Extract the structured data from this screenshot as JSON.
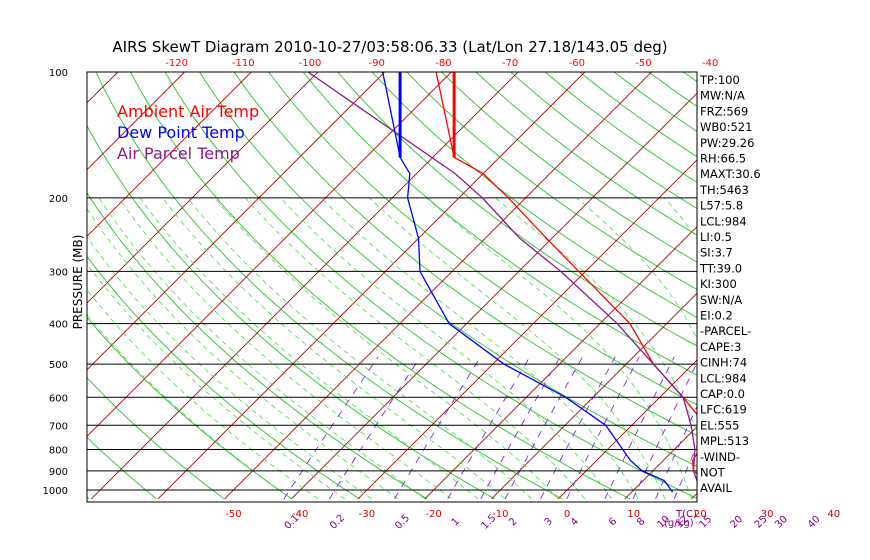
{
  "chart_data": {
    "type": "line",
    "title": "AIRS SkewT Diagram 2010-10-27/03:58:06.33 (Lat/Lon 27.18/143.05 deg)",
    "ylabel": "PRESSURE (MB)",
    "bottom_unit_label": "T(C)",
    "mixing_ratio_unit": "(g/kg)",
    "pressure_levels": [
      100,
      200,
      300,
      400,
      500,
      600,
      700,
      800,
      900,
      1000
    ],
    "isobars": [
      100,
      200,
      300,
      400,
      500,
      600,
      700,
      800,
      900,
      1000
    ],
    "top_temperature_ticks": [
      -120,
      -110,
      -100,
      -90,
      -80,
      -70,
      -60,
      -50,
      -40
    ],
    "bottom_temperature_ticks": [
      -50,
      -40,
      -30,
      -20,
      -10,
      0,
      10,
      20,
      30,
      40
    ],
    "mixing_ratio_labels": [
      "0.1",
      "0.2",
      "0.5",
      "1",
      "1.5",
      "2",
      "3",
      "4",
      "6",
      "8",
      "10",
      "12",
      "15",
      "20",
      "25",
      "30",
      "40"
    ],
    "legend": [
      {
        "label": "Ambient Air Temp",
        "color": "#ff0000"
      },
      {
        "label": "Dew Point Temp",
        "color": "#0000ff"
      },
      {
        "label": "Air Parcel Temp",
        "color": "#8a1a8a"
      }
    ],
    "series": [
      {
        "name": "Ambient Air Temp",
        "color": "#ff0000",
        "points": [
          [
            1013,
            23.4
          ],
          [
            950,
            19.4
          ],
          [
            900,
            16.1
          ],
          [
            850,
            14.4
          ],
          [
            750,
            13.2
          ],
          [
            700,
            11.1
          ],
          [
            600,
            3.5
          ],
          [
            500,
            -5.9
          ],
          [
            400,
            -15.5
          ],
          [
            300,
            -31.0
          ],
          [
            250,
            -40.8
          ],
          [
            200,
            -52.6
          ],
          [
            175,
            -60.0
          ],
          [
            160,
            -66.8
          ],
          [
            100,
            -82.3
          ]
        ]
      },
      {
        "name": "Dew Point Temp",
        "color": "#0000ff",
        "points": [
          [
            1013,
            16.2
          ],
          [
            950,
            13.2
          ],
          [
            900,
            8.4
          ],
          [
            850,
            5.1
          ],
          [
            700,
            -3.9
          ],
          [
            600,
            -14.1
          ],
          [
            500,
            -28.3
          ],
          [
            400,
            -42.6
          ],
          [
            300,
            -54.8
          ],
          [
            250,
            -60.0
          ],
          [
            200,
            -67.7
          ],
          [
            175,
            -71.0
          ],
          [
            160,
            -74.9
          ],
          [
            100,
            -90.3
          ]
        ]
      },
      {
        "name": "Air Parcel Temp",
        "color": "#8a1a8a",
        "points": [
          [
            1013,
            23.4
          ],
          [
            984,
            19.4
          ],
          [
            900,
            16.1
          ],
          [
            800,
            13.1
          ],
          [
            700,
            8.9
          ],
          [
            600,
            3.5
          ],
          [
            500,
            -5.9
          ],
          [
            400,
            -17.4
          ],
          [
            300,
            -33.7
          ],
          [
            250,
            -44.8
          ],
          [
            200,
            -56.5
          ],
          [
            175,
            -64.2
          ],
          [
            100,
            -101.5
          ]
        ]
      }
    ]
  },
  "indices": [
    "TP:100",
    "MW:N/A",
    "FRZ:569",
    "WB0:521",
    "PW:29.26",
    "RH:66.5",
    "MAXT:30.6",
    "TH:5463",
    "L57:5.8",
    "LCL:984",
    "LI:0.5",
    "SI:3.7",
    "TT:39.0",
    "KI:300",
    "SW:N/A",
    "EI:0.2",
    "-PARCEL-",
    "CAPE:3",
    "CINH:74",
    "LCL:984",
    "CAP:0.0",
    "LFC:619",
    "EL:555",
    "MPL:513",
    "-WIND-",
    "NOT",
    "AVAIL"
  ]
}
